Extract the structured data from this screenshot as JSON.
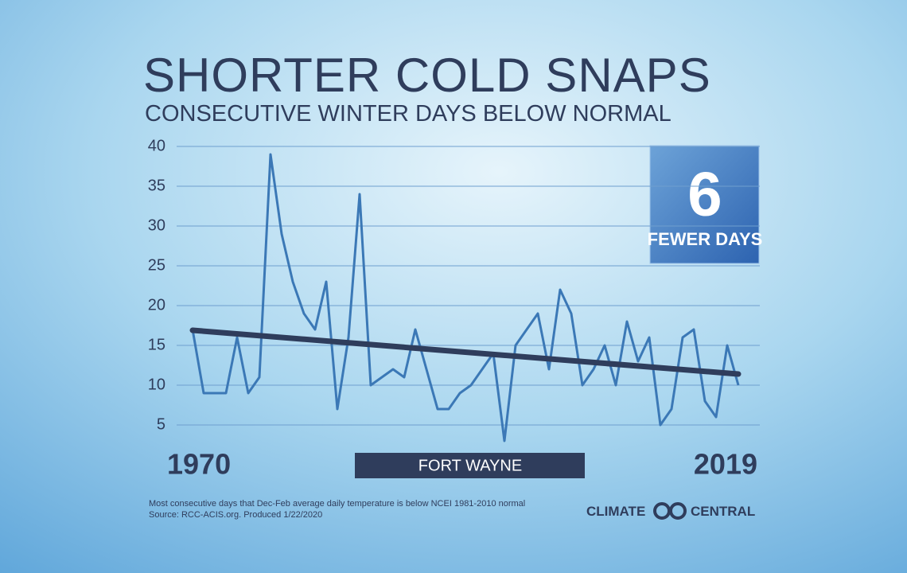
{
  "chart_data": {
    "type": "line",
    "title": "SHORTER COLD SNAPS",
    "subtitle": "CONSECUTIVE WINTER DAYS BELOW NORMAL",
    "x": [
      1970,
      1971,
      1972,
      1973,
      1974,
      1975,
      1976,
      1977,
      1978,
      1979,
      1980,
      1981,
      1982,
      1983,
      1984,
      1985,
      1986,
      1987,
      1988,
      1989,
      1990,
      1991,
      1992,
      1993,
      1994,
      1995,
      1996,
      1997,
      1998,
      1999,
      2000,
      2001,
      2002,
      2003,
      2004,
      2005,
      2006,
      2007,
      2008,
      2009,
      2010,
      2011,
      2012,
      2013,
      2014,
      2015,
      2016,
      2017,
      2018,
      2019
    ],
    "series": [
      {
        "name": "FORT WAYNE",
        "color": "#3b78b6",
        "values": [
          17,
          9,
          9,
          9,
          16,
          9,
          11,
          39,
          29,
          23,
          19,
          17,
          23,
          7,
          16,
          34,
          10,
          11,
          12,
          11,
          17,
          12,
          7,
          7,
          9,
          10,
          12,
          14,
          3,
          15,
          17,
          19,
          12,
          22,
          19,
          10,
          12,
          15,
          10,
          18,
          13,
          16,
          5,
          7,
          16,
          17,
          8,
          6,
          15,
          10
        ]
      }
    ],
    "trend": {
      "color": "#2f3d5c",
      "x": [
        1970,
        2019
      ],
      "values": [
        16.9,
        11.4
      ]
    },
    "xlim": [
      1970,
      2019
    ],
    "xticks": [
      1970,
      2019
    ],
    "ylim": [
      0,
      40
    ],
    "yticks": [
      5,
      10,
      15,
      20,
      25,
      30,
      35,
      40
    ],
    "grid": true,
    "callout": {
      "number": "6",
      "text": "FEWER DAYS"
    },
    "notes": [
      "Most consecutive days that  Dec-Feb average daily temperature is  below NCEI 1981-2010 normal",
      "Source: RCC-ACIS.org. Produced 1/22/2020"
    ],
    "logo": [
      "CLIMATE",
      "CENTRAL"
    ]
  }
}
